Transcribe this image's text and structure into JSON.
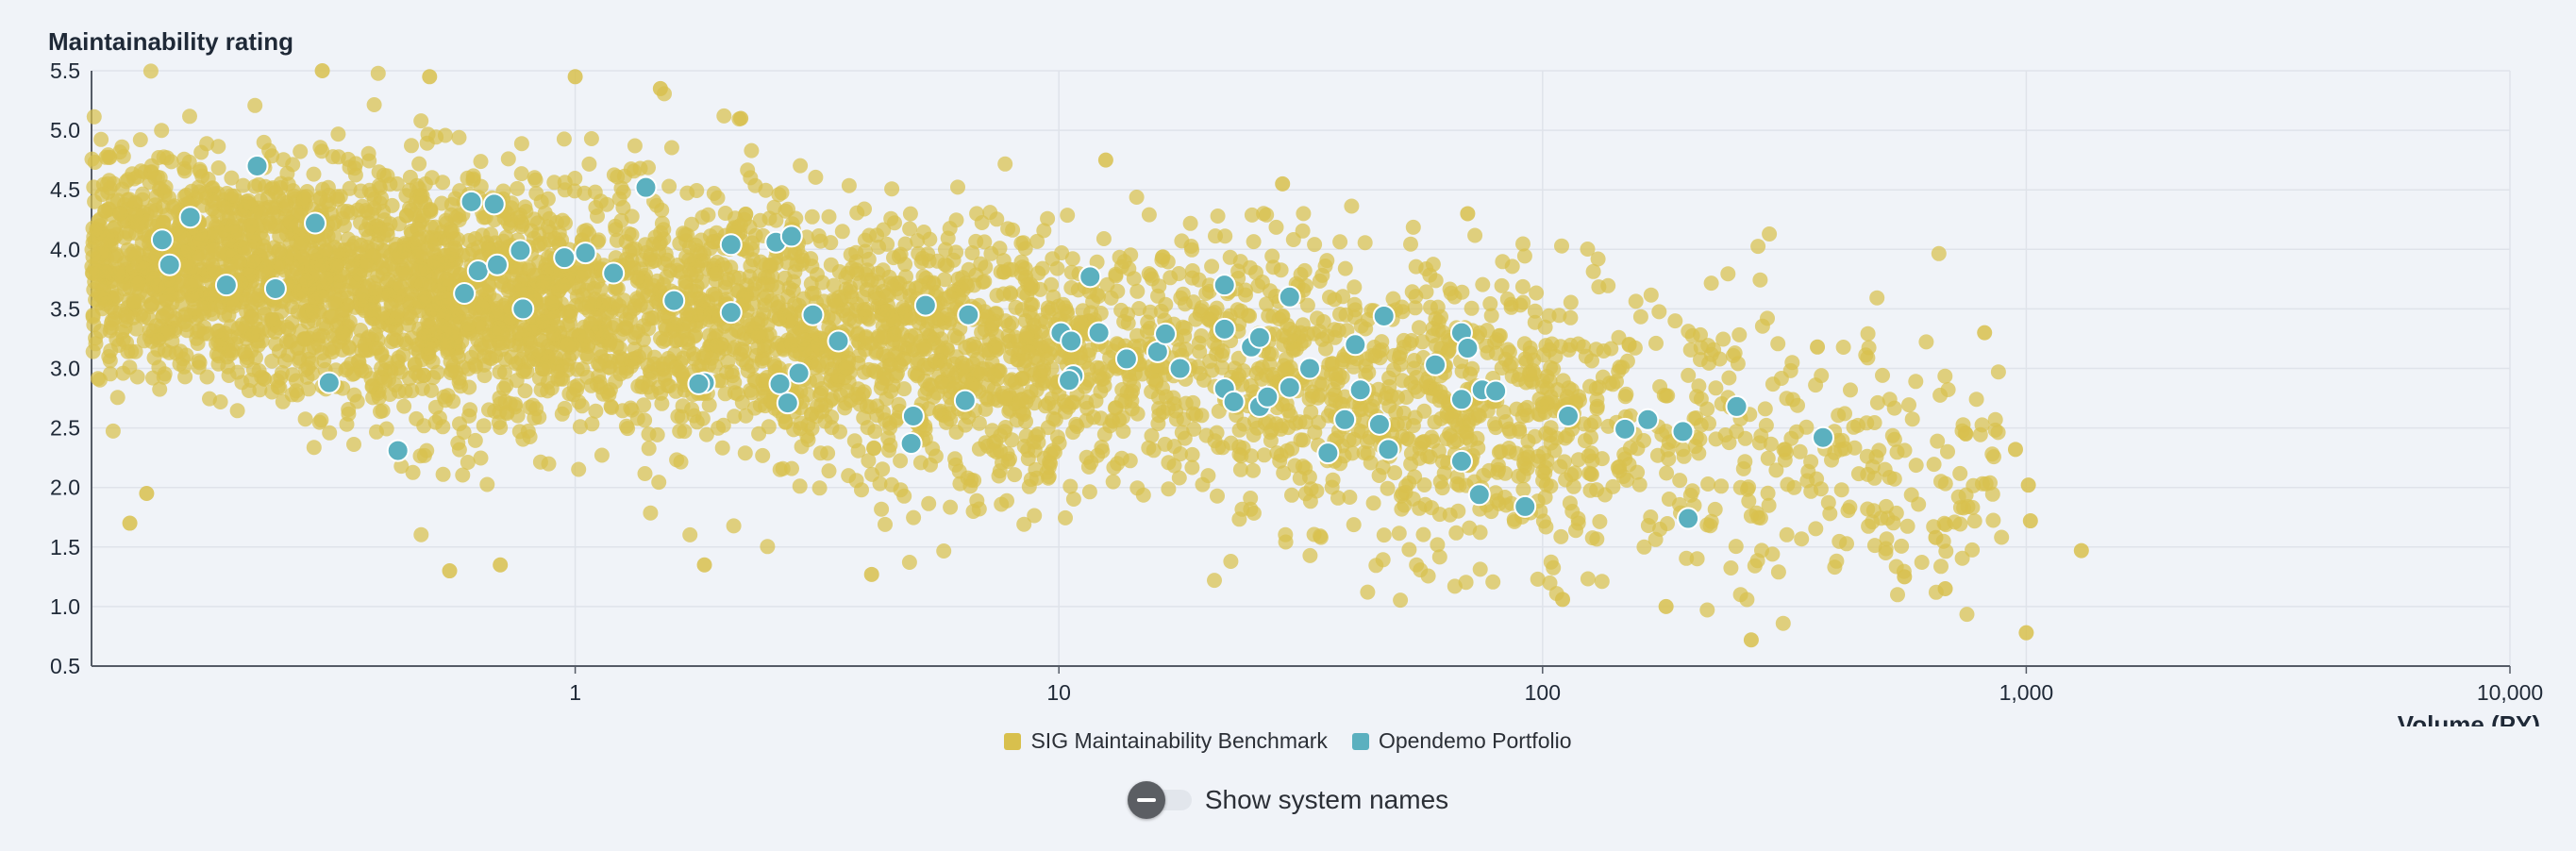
{
  "chart_data": {
    "type": "scatter",
    "ylabel": "Maintainability rating",
    "xlabel": "Volume (PY)",
    "x_scale": "log",
    "xlim": [
      0.1,
      10000
    ],
    "ylim": [
      0.5,
      5.5
    ],
    "x_ticks": [
      1,
      10,
      100,
      1000,
      10000
    ],
    "x_tick_labels": [
      "1",
      "10",
      "100",
      "1,000",
      "10,000"
    ],
    "y_ticks": [
      0.5,
      1.0,
      1.5,
      2.0,
      2.5,
      3.0,
      3.5,
      4.0,
      4.5,
      5.0,
      5.5
    ],
    "y_tick_labels": [
      "0.5",
      "1.0",
      "1.5",
      "2.0",
      "2.5",
      "3.0",
      "3.5",
      "4.0",
      "4.5",
      "5.0",
      "5.5"
    ],
    "grid": true,
    "legend_position": "bottom-center",
    "series": [
      {
        "name": "SIG Maintainability Benchmark",
        "color": "#d8c04d",
        "distribution": "dense cloud, approx. thousands of systems; rating trends from ~4.0 at small volume to ~2.5 at 1,000 PY",
        "points": [
          [
            0.3,
            5.5
          ],
          [
            0.5,
            5.45
          ],
          [
            1.0,
            5.45
          ],
          [
            1.5,
            5.35
          ],
          [
            2.2,
            5.1
          ],
          [
            12.5,
            4.75
          ],
          [
            29,
            4.55
          ],
          [
            70,
            4.3
          ],
          [
            0.55,
            1.3
          ],
          [
            0.7,
            1.35
          ],
          [
            1.85,
            1.35
          ],
          [
            4.1,
            1.27
          ],
          [
            270,
            0.72
          ],
          [
            1000,
            0.78
          ],
          [
            1020,
            1.72
          ],
          [
            1010,
            2.02
          ],
          [
            1300,
            1.47
          ],
          [
            820,
            3.3
          ],
          [
            680,
            1.15
          ],
          [
            650,
            1.58
          ],
          [
            560,
            1.25
          ],
          [
            950,
            2.32
          ],
          [
            750,
            2.45
          ],
          [
            370,
            3.18
          ],
          [
            180,
            1.0
          ],
          [
            110,
            1.06
          ],
          [
            0.12,
            1.7
          ],
          [
            0.13,
            1.95
          ]
        ]
      },
      {
        "name": "Opendemo Portfolio",
        "color": "#5bb0bf",
        "points": [
          [
            0.22,
            4.7
          ],
          [
            0.16,
            4.27
          ],
          [
            0.29,
            4.22
          ],
          [
            0.14,
            4.08
          ],
          [
            0.145,
            3.87
          ],
          [
            0.19,
            3.7
          ],
          [
            0.24,
            3.67
          ],
          [
            0.31,
            2.88
          ],
          [
            0.43,
            2.31
          ],
          [
            0.61,
            4.4
          ],
          [
            0.68,
            4.38
          ],
          [
            0.63,
            3.82
          ],
          [
            0.59,
            3.63
          ],
          [
            0.69,
            3.87
          ],
          [
            0.77,
            3.99
          ],
          [
            0.78,
            3.5
          ],
          [
            0.95,
            3.93
          ],
          [
            1.05,
            3.97
          ],
          [
            1.2,
            3.8
          ],
          [
            1.4,
            4.52
          ],
          [
            1.6,
            3.57
          ],
          [
            2.1,
            4.04
          ],
          [
            2.1,
            3.47
          ],
          [
            1.85,
            2.88
          ],
          [
            1.8,
            2.87
          ],
          [
            2.6,
            4.06
          ],
          [
            2.8,
            4.11
          ],
          [
            2.65,
            2.87
          ],
          [
            2.75,
            2.71
          ],
          [
            2.9,
            2.96
          ],
          [
            3.1,
            3.45
          ],
          [
            3.5,
            3.23
          ],
          [
            5.3,
            3.53
          ],
          [
            6.5,
            3.45
          ],
          [
            5.0,
            2.6
          ],
          [
            4.95,
            2.37
          ],
          [
            6.4,
            2.73
          ],
          [
            10.1,
            3.3
          ],
          [
            10.6,
            3.23
          ],
          [
            10.7,
            2.94
          ],
          [
            10.5,
            2.9
          ],
          [
            11.6,
            3.77
          ],
          [
            12.1,
            3.3
          ],
          [
            13.8,
            3.08
          ],
          [
            16.0,
            3.14
          ],
          [
            16.6,
            3.29
          ],
          [
            17.8,
            3.0
          ],
          [
            22,
            3.33
          ],
          [
            22,
            3.7
          ],
          [
            25,
            3.18
          ],
          [
            26,
            3.26
          ],
          [
            22,
            2.83
          ],
          [
            23,
            2.72
          ],
          [
            26,
            2.68
          ],
          [
            27,
            2.76
          ],
          [
            30,
            3.6
          ],
          [
            30,
            2.84
          ],
          [
            33,
            3.0
          ],
          [
            36,
            2.29
          ],
          [
            39,
            2.57
          ],
          [
            41,
            3.2
          ],
          [
            42,
            2.82
          ],
          [
            47,
            3.44
          ],
          [
            46,
            2.53
          ],
          [
            48,
            2.32
          ],
          [
            60,
            3.03
          ],
          [
            68,
            3.3
          ],
          [
            70,
            3.17
          ],
          [
            68,
            2.74
          ],
          [
            75,
            2.82
          ],
          [
            80,
            2.81
          ],
          [
            68,
            2.22
          ],
          [
            74,
            1.94
          ],
          [
            92,
            1.84
          ],
          [
            113,
            2.6
          ],
          [
            148,
            2.49
          ],
          [
            165,
            2.57
          ],
          [
            195,
            2.47
          ],
          [
            200,
            1.74
          ],
          [
            252,
            2.68
          ],
          [
            380,
            2.42
          ]
        ]
      }
    ]
  },
  "legend": {
    "items": [
      {
        "label": "SIG Maintainability Benchmark",
        "color": "#d8c04d"
      },
      {
        "label": "Opendemo Portfolio",
        "color": "#5bb0bf"
      }
    ]
  },
  "toggle": {
    "label": "Show system names",
    "checked": false
  }
}
